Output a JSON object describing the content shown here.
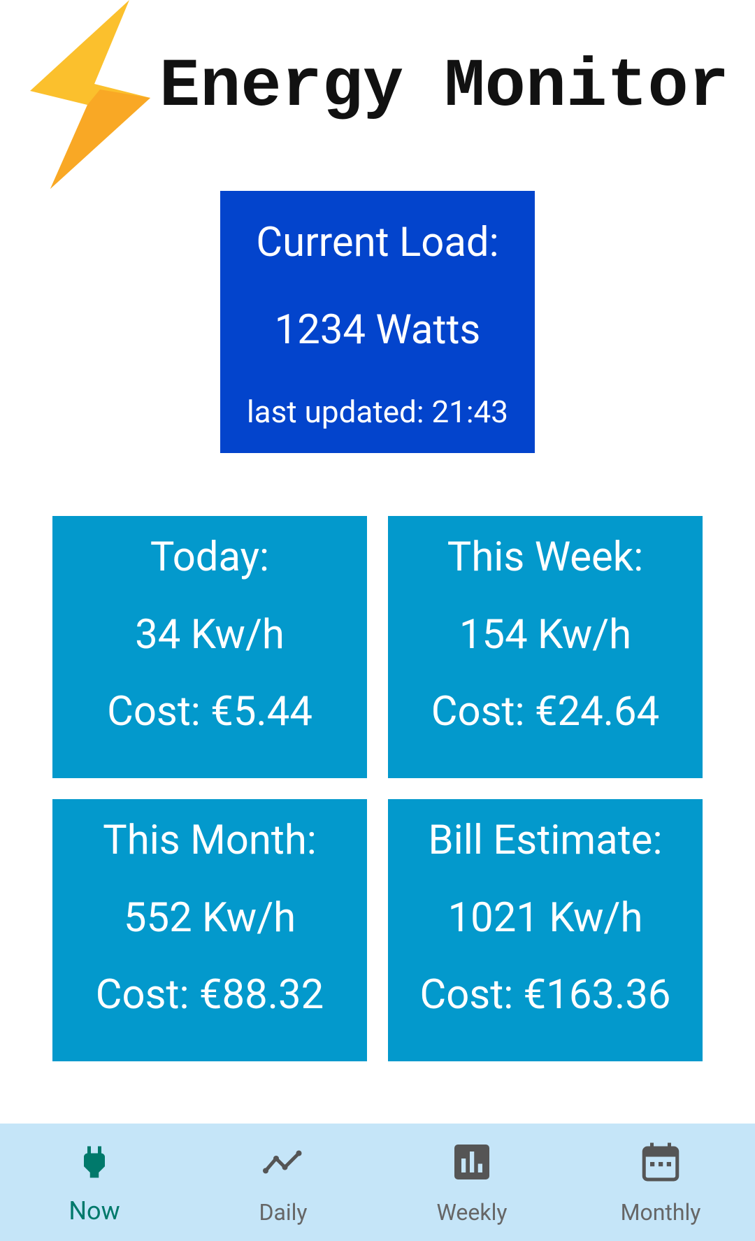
{
  "header": {
    "title": "Energy Monitor"
  },
  "current_load": {
    "label": "Current Load:",
    "value": "1234 Watts",
    "updated": "last updated: 21:43"
  },
  "cards": [
    {
      "title": "Today:",
      "energy": "34 Kw/h",
      "cost": "Cost: €5.44"
    },
    {
      "title": "This Week:",
      "energy": "154 Kw/h",
      "cost": "Cost: €24.64"
    },
    {
      "title": "This Month:",
      "energy": "552 Kw/h",
      "cost": "Cost: €88.32"
    },
    {
      "title": "Bill Estimate:",
      "energy": "1021 Kw/h",
      "cost": "Cost: €163.36"
    }
  ],
  "nav": [
    "Now",
    "Daily",
    "Weekly",
    "Monthly"
  ]
}
